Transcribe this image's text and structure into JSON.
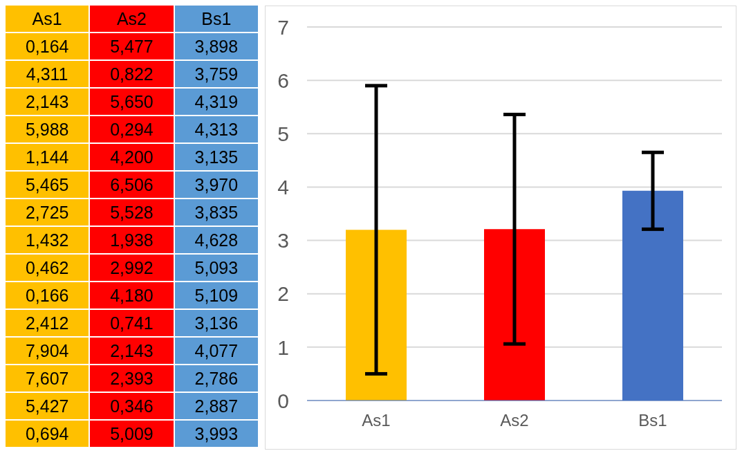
{
  "chart_data": [
    {
      "type": "other",
      "categories": [
        "As1",
        "As2",
        "Bs1"
      ],
      "colors": [
        "#ffc000",
        "#ff0000",
        "#5b9bd5"
      ],
      "cell_labels": [
        [
          "0,164",
          "5,477",
          "3,898"
        ],
        [
          "4,311",
          "0,822",
          "3,759"
        ],
        [
          "2,143",
          "5,650",
          "4,319"
        ],
        [
          "5,988",
          "0,294",
          "4,313"
        ],
        [
          "1,144",
          "4,200",
          "3,135"
        ],
        [
          "5,465",
          "6,506",
          "3,970"
        ],
        [
          "2,725",
          "5,528",
          "3,835"
        ],
        [
          "1,432",
          "1,938",
          "4,628"
        ],
        [
          "0,462",
          "2,992",
          "5,093"
        ],
        [
          "0,166",
          "4,180",
          "5,109"
        ],
        [
          "2,412",
          "0,741",
          "3,136"
        ],
        [
          "7,904",
          "2,143",
          "4,077"
        ],
        [
          "7,607",
          "2,393",
          "2,786"
        ],
        [
          "5,427",
          "0,346",
          "2,887"
        ],
        [
          "0,694",
          "5,009",
          "3,993"
        ]
      ]
    },
    {
      "type": "bar",
      "categories": [
        "As1",
        "As2",
        "Bs1"
      ],
      "values": [
        3.2,
        3.21,
        3.93
      ],
      "errors": [
        2.7,
        2.15,
        0.72
      ],
      "colors": [
        "#ffc000",
        "#ff0000",
        "#4472c4"
      ],
      "ylim": [
        0,
        7
      ],
      "yticks": [
        0,
        1,
        2,
        3,
        4,
        5,
        6,
        7
      ],
      "grid": "y"
    }
  ]
}
